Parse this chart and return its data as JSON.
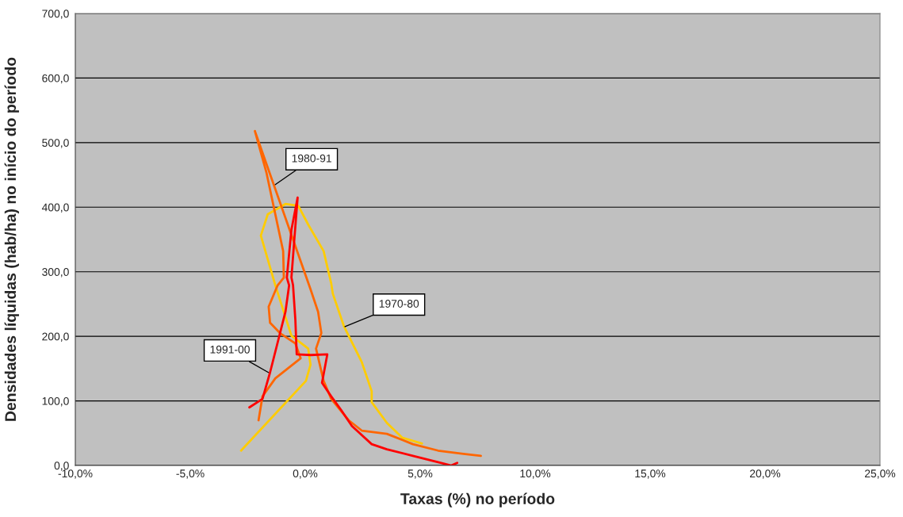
{
  "chart_data": {
    "type": "line",
    "xlabel": "Taxas (%) no período",
    "ylabel": "Densidades líquidas (hab/ha) no início do período",
    "xlim": [
      -10,
      25
    ],
    "xticks": [
      {
        "value": -10,
        "label": "-10,0%"
      },
      {
        "value": -5,
        "label": "-5,0%"
      },
      {
        "value": 0,
        "label": "0,0%"
      },
      {
        "value": 5,
        "label": "5,0%"
      },
      {
        "value": 10,
        "label": "10,0%"
      },
      {
        "value": 15,
        "label": "15,0%"
      },
      {
        "value": 20,
        "label": "20,0%"
      },
      {
        "value": 25,
        "label": "25,0%"
      }
    ],
    "ylim": [
      0,
      700
    ],
    "yticks": [
      {
        "value": 0,
        "label": "0,0"
      },
      {
        "value": 100,
        "label": "100,0"
      },
      {
        "value": 200,
        "label": "200,0"
      },
      {
        "value": 300,
        "label": "300,0"
      },
      {
        "value": 400,
        "label": "400,0"
      },
      {
        "value": 500,
        "label": "500,0"
      },
      {
        "value": 600,
        "label": "600,0"
      },
      {
        "value": 700,
        "label": "700,0"
      }
    ],
    "grid": "y",
    "series": [
      {
        "color": "#ffcc00",
        "x": [
          -2.79,
          0.03,
          0.23,
          0.13,
          -0.6,
          -1.3,
          -1.93,
          -1.63,
          -0.86,
          -0.3,
          0.13,
          0.8,
          1.13,
          1.2,
          1.69,
          2.46,
          2.89,
          2.89,
          3.55,
          4.22,
          5.08
        ],
        "values": [
          23,
          131,
          156,
          181,
          201,
          279,
          356,
          389,
          405,
          402,
          373,
          332,
          282,
          266,
          215,
          160,
          115,
          98,
          66,
          43,
          34
        ]
      },
      {
        "color": "#ff6600",
        "x": [
          7.64,
          6.88,
          5.78,
          4.68,
          3.55,
          2.46,
          1.89,
          1.13,
          0.8,
          0.47,
          0.7,
          0.56,
          0.23,
          -2.19,
          -1.69,
          -0.96,
          -0.93,
          -1.2,
          -1.59,
          -1.53,
          -1.1,
          -0.43,
          -0.2,
          -1.3,
          -1.86,
          -2.03
        ],
        "values": [
          15,
          18,
          23,
          33,
          49,
          54,
          70,
          103,
          131,
          181,
          205,
          238,
          273,
          518,
          454,
          332,
          291,
          279,
          246,
          221,
          205,
          189,
          166,
          135,
          107,
          70
        ]
      },
      {
        "color": "#ff0000",
        "x": [
          -2.43,
          -1.86,
          -1.53,
          -0.86,
          -0.7,
          -0.8,
          -0.6,
          -0.33,
          -0.47,
          -0.6,
          -0.53,
          -0.43,
          -0.37,
          0.23,
          0.96,
          0.73,
          1.13,
          1.56,
          2.03,
          2.89,
          3.55,
          4.68,
          5.78,
          6.35,
          6.61
        ],
        "values": [
          90,
          103,
          144,
          238,
          279,
          291,
          365,
          415,
          352,
          291,
          279,
          226,
          172,
          171,
          172,
          128,
          107,
          86,
          61,
          33,
          25,
          15,
          5,
          0,
          4
        ]
      }
    ],
    "annotations": [
      {
        "text": "1980-91",
        "x": -1.3,
        "y": 435
      },
      {
        "text": "1970-80",
        "x": 1.73,
        "y": 215
      },
      {
        "text": "1991-00",
        "x": -1.6,
        "y": 144
      }
    ]
  }
}
